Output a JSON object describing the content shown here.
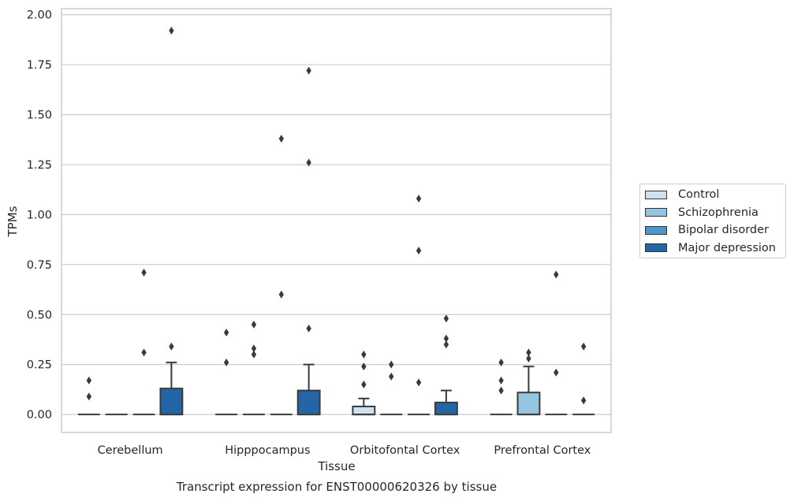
{
  "chart_data": {
    "type": "boxplot",
    "title": "Transcript expression for ENST00000620326 by tissue",
    "xlabel": "Tissue",
    "ylabel": "TPMs",
    "ylim": [
      -0.09,
      2.03
    ],
    "yticks": [
      "0.00",
      "0.25",
      "0.50",
      "0.75",
      "1.00",
      "1.25",
      "1.50",
      "1.75",
      "2.00"
    ],
    "categories": [
      "Cerebellum",
      "Hipppocampus",
      "Orbitofontal Cortex",
      "Prefrontal Cortex"
    ],
    "grid": "horizontal",
    "legend_position": "right",
    "series": [
      {
        "name": "Control",
        "color": "#d0e1f2",
        "boxes": [
          {
            "q1": 0,
            "median": 0,
            "q3": 0,
            "whisker_low": 0,
            "whisker_high": 0,
            "outliers": [
              0.09,
              0.17
            ]
          },
          {
            "q1": 0,
            "median": 0,
            "q3": 0,
            "whisker_low": 0,
            "whisker_high": 0,
            "outliers": [
              0.26,
              0.41
            ]
          },
          {
            "q1": 0,
            "median": 0,
            "q3": 0.04,
            "whisker_low": 0,
            "whisker_high": 0.08,
            "outliers": [
              0.15,
              0.24,
              0.3
            ]
          },
          {
            "q1": 0,
            "median": 0,
            "q3": 0,
            "whisker_low": 0,
            "whisker_high": 0,
            "outliers": [
              0.12,
              0.17,
              0.26
            ]
          }
        ]
      },
      {
        "name": "Schizophrenia",
        "color": "#94c4df",
        "boxes": [
          {
            "q1": 0,
            "median": 0,
            "q3": 0,
            "whisker_low": 0,
            "whisker_high": 0,
            "outliers": []
          },
          {
            "q1": 0,
            "median": 0,
            "q3": 0,
            "whisker_low": 0,
            "whisker_high": 0,
            "outliers": [
              0.3,
              0.33,
              0.45
            ]
          },
          {
            "q1": 0,
            "median": 0,
            "q3": 0,
            "whisker_low": 0,
            "whisker_high": 0,
            "outliers": [
              0.19,
              0.25
            ]
          },
          {
            "q1": 0,
            "median": 0,
            "q3": 0.11,
            "whisker_low": 0,
            "whisker_high": 0.24,
            "outliers": [
              0.28,
              0.31
            ]
          }
        ]
      },
      {
        "name": "Bipolar disorder",
        "color": "#4a98c9",
        "boxes": [
          {
            "q1": 0,
            "median": 0,
            "q3": 0,
            "whisker_low": 0,
            "whisker_high": 0,
            "outliers": [
              0.31,
              0.71
            ]
          },
          {
            "q1": 0,
            "median": 0,
            "q3": 0,
            "whisker_low": 0,
            "whisker_high": 0,
            "outliers": [
              0.6,
              1.38
            ]
          },
          {
            "q1": 0,
            "median": 0,
            "q3": 0,
            "whisker_low": 0,
            "whisker_high": 0,
            "outliers": [
              0.16,
              0.82,
              1.08
            ]
          },
          {
            "q1": 0,
            "median": 0,
            "q3": 0,
            "whisker_low": 0,
            "whisker_high": 0,
            "outliers": [
              0.21,
              0.7
            ]
          }
        ]
      },
      {
        "name": "Major depression",
        "color": "#2465a8",
        "boxes": [
          {
            "q1": 0,
            "median": 0,
            "q3": 0.13,
            "whisker_low": 0,
            "whisker_high": 0.26,
            "outliers": [
              0.34,
              1.92
            ]
          },
          {
            "q1": 0,
            "median": 0,
            "q3": 0.12,
            "whisker_low": 0,
            "whisker_high": 0.25,
            "outliers": [
              0.43,
              1.26,
              1.72
            ]
          },
          {
            "q1": 0,
            "median": 0,
            "q3": 0.06,
            "whisker_low": 0,
            "whisker_high": 0.12,
            "outliers": [
              0.35,
              0.38,
              0.48
            ]
          },
          {
            "q1": 0,
            "median": 0,
            "q3": 0,
            "whisker_low": 0,
            "whisker_high": 0,
            "outliers": [
              0.07,
              0.34
            ]
          }
        ]
      }
    ]
  }
}
